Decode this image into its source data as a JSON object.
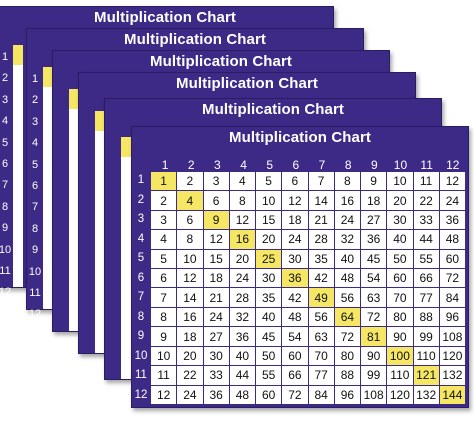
{
  "title": "Multiplication Chart",
  "back_sheet_side_numbers": [
    "1",
    "2",
    "3",
    "4",
    "5",
    "6",
    "7",
    "8",
    "9",
    "10",
    "11",
    "12"
  ],
  "column_headers": [
    "1",
    "2",
    "3",
    "4",
    "5",
    "6",
    "7",
    "8",
    "9",
    "10",
    "11",
    "12"
  ],
  "row_headers": [
    "1",
    "2",
    "3",
    "4",
    "5",
    "6",
    "7",
    "8",
    "9",
    "10",
    "11",
    "12"
  ],
  "table": [
    [
      "1",
      "2",
      "3",
      "4",
      "5",
      "6",
      "7",
      "8",
      "9",
      "10",
      "11",
      "12"
    ],
    [
      "2",
      "4",
      "6",
      "8",
      "10",
      "12",
      "14",
      "16",
      "18",
      "20",
      "22",
      "24"
    ],
    [
      "3",
      "6",
      "9",
      "12",
      "15",
      "18",
      "21",
      "24",
      "27",
      "30",
      "33",
      "36"
    ],
    [
      "4",
      "8",
      "12",
      "16",
      "20",
      "24",
      "28",
      "32",
      "36",
      "40",
      "44",
      "48"
    ],
    [
      "5",
      "10",
      "15",
      "20",
      "25",
      "30",
      "35",
      "40",
      "45",
      "50",
      "55",
      "60"
    ],
    [
      "6",
      "12",
      "18",
      "24",
      "30",
      "36",
      "42",
      "48",
      "54",
      "60",
      "66",
      "72"
    ],
    [
      "7",
      "14",
      "21",
      "28",
      "35",
      "42",
      "49",
      "56",
      "63",
      "70",
      "77",
      "84"
    ],
    [
      "8",
      "16",
      "24",
      "32",
      "40",
      "48",
      "56",
      "64",
      "72",
      "80",
      "88",
      "96"
    ],
    [
      "9",
      "18",
      "27",
      "36",
      "45",
      "54",
      "63",
      "72",
      "81",
      "90",
      "99",
      "108"
    ],
    [
      "10",
      "20",
      "30",
      "40",
      "50",
      "60",
      "70",
      "80",
      "90",
      "100",
      "110",
      "120"
    ],
    [
      "11",
      "22",
      "33",
      "44",
      "55",
      "66",
      "77",
      "88",
      "99",
      "110",
      "121",
      "132"
    ],
    [
      "12",
      "24",
      "36",
      "48",
      "60",
      "72",
      "84",
      "96",
      "108",
      "120",
      "132",
      "144"
    ]
  ],
  "colors": {
    "sheet_purple": "#3d2a86",
    "highlight_yellow": "#f5e663",
    "cell_white": "#ffffff"
  }
}
